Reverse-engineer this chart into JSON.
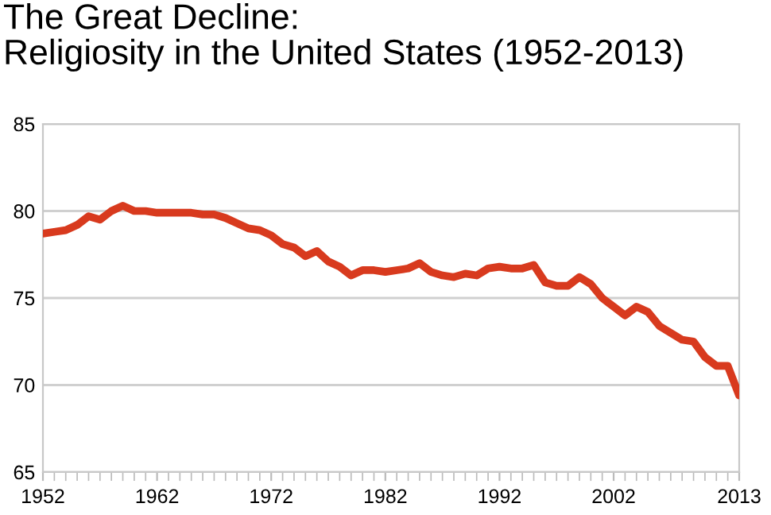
{
  "chart_data": {
    "type": "line",
    "title": "The Great Decline:\nReligiosity in the United States (1952-2013)",
    "x": [
      1952,
      1953,
      1954,
      1955,
      1956,
      1957,
      1958,
      1959,
      1960,
      1961,
      1962,
      1963,
      1964,
      1965,
      1966,
      1967,
      1968,
      1969,
      1970,
      1971,
      1972,
      1973,
      1974,
      1975,
      1976,
      1977,
      1978,
      1979,
      1980,
      1981,
      1982,
      1983,
      1984,
      1985,
      1986,
      1987,
      1988,
      1989,
      1990,
      1991,
      1992,
      1993,
      1994,
      1995,
      1996,
      1997,
      1998,
      1999,
      2000,
      2001,
      2002,
      2003,
      2004,
      2005,
      2006,
      2007,
      2008,
      2009,
      2010,
      2011,
      2012,
      2013
    ],
    "series": [
      {
        "color": "#d83a1e",
        "values": [
          78.7,
          78.8,
          78.9,
          79.2,
          79.7,
          79.5,
          80.0,
          80.3,
          80.0,
          80.0,
          79.9,
          79.9,
          79.9,
          79.9,
          79.8,
          79.8,
          79.6,
          79.3,
          79.0,
          78.9,
          78.6,
          78.1,
          77.9,
          77.4,
          77.7,
          77.1,
          76.8,
          76.3,
          76.6,
          76.6,
          76.5,
          76.6,
          76.7,
          77.0,
          76.5,
          76.3,
          76.2,
          76.4,
          76.3,
          76.7,
          76.8,
          76.7,
          76.7,
          76.9,
          75.9,
          75.7,
          75.7,
          76.2,
          75.8,
          75.0,
          74.5,
          74.0,
          74.5,
          74.2,
          73.4,
          73.0,
          72.6,
          72.5,
          71.6,
          71.1,
          71.1,
          69.4
        ]
      }
    ],
    "xlim": [
      1952,
      2013
    ],
    "xticks": [
      1952,
      1962,
      1972,
      1982,
      1992,
      2002,
      2013
    ],
    "ylim": [
      65,
      85
    ],
    "yticks": [
      65,
      70,
      75,
      80,
      85
    ],
    "grid": "y",
    "marker": "none",
    "line_style": "solid",
    "legend": false
  }
}
